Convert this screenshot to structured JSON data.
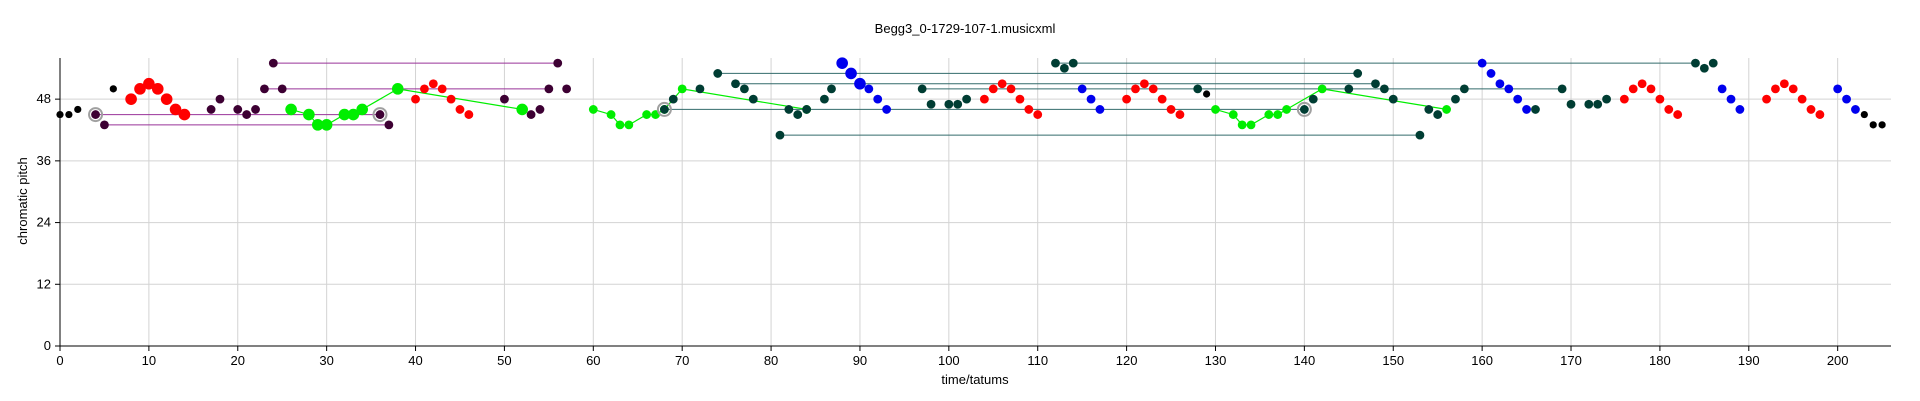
{
  "chart_data": {
    "type": "scatter",
    "title": "Begg3_0-1729-107-1.musicxml",
    "xlabel": "time/tatums",
    "ylabel": "chromatic pitch",
    "xlim": [
      0,
      206
    ],
    "ylim": [
      0,
      56
    ],
    "xticks": [
      0,
      10,
      20,
      30,
      40,
      50,
      60,
      70,
      80,
      90,
      100,
      110,
      120,
      130,
      140,
      150,
      160,
      170,
      180,
      190,
      200
    ],
    "yticks": [
      0,
      12,
      24,
      36,
      48
    ],
    "xtick_labels": [
      "0",
      "10",
      "20",
      "30",
      "40",
      "50",
      "60",
      "70",
      "80",
      "90",
      "100",
      "110",
      "120",
      "130",
      "140",
      "150",
      "160",
      "170",
      "180",
      "190",
      "200"
    ],
    "ytick_labels": [
      "0",
      "12",
      "24",
      "36",
      "48"
    ],
    "grid": true,
    "colors": {
      "black": "#000000",
      "red": "#ff0000",
      "purple": "#3d0033",
      "purple_line": "#993399",
      "green": "#00ee00",
      "teal": "#003d33",
      "teal_line": "#336b6b",
      "blue": "#0000ee"
    },
    "series": [
      {
        "color": "black",
        "points": [
          [
            0,
            45
          ],
          [
            1,
            45
          ],
          [
            2,
            46
          ],
          [
            6,
            50
          ],
          [
            129,
            49
          ],
          [
            203,
            45
          ],
          [
            204,
            43
          ],
          [
            205,
            43
          ]
        ]
      },
      {
        "color": "red",
        "big": [
          [
            8,
            48
          ],
          [
            9,
            50
          ],
          [
            10,
            51
          ],
          [
            11,
            50
          ],
          [
            12,
            48
          ],
          [
            13,
            46
          ],
          [
            14,
            45
          ]
        ],
        "points": [
          [
            40,
            48
          ],
          [
            41,
            50
          ],
          [
            42,
            51
          ],
          [
            43,
            50
          ],
          [
            44,
            48
          ],
          [
            45,
            46
          ],
          [
            46,
            45
          ],
          [
            104,
            48
          ],
          [
            105,
            50
          ],
          [
            106,
            51
          ],
          [
            107,
            50
          ],
          [
            108,
            48
          ],
          [
            109,
            46
          ],
          [
            110,
            45
          ],
          [
            120,
            48
          ],
          [
            121,
            50
          ],
          [
            122,
            51
          ],
          [
            123,
            50
          ],
          [
            124,
            48
          ],
          [
            125,
            46
          ],
          [
            126,
            45
          ],
          [
            176,
            48
          ],
          [
            177,
            50
          ],
          [
            178,
            51
          ],
          [
            179,
            50
          ],
          [
            180,
            48
          ],
          [
            181,
            46
          ],
          [
            182,
            45
          ],
          [
            192,
            48
          ],
          [
            193,
            50
          ],
          [
            194,
            51
          ],
          [
            195,
            50
          ],
          [
            196,
            48
          ],
          [
            197,
            46
          ],
          [
            198,
            45
          ]
        ]
      },
      {
        "color": "purple",
        "points": [
          [
            4,
            45
          ],
          [
            5,
            43
          ],
          [
            17,
            46
          ],
          [
            18,
            48
          ],
          [
            20,
            46
          ],
          [
            21,
            45
          ],
          [
            22,
            46
          ],
          [
            23,
            50
          ],
          [
            24,
            55
          ],
          [
            25,
            50
          ],
          [
            36,
            45
          ],
          [
            37,
            43
          ],
          [
            50,
            48
          ],
          [
            52,
            46
          ],
          [
            53,
            45
          ],
          [
            54,
            46
          ],
          [
            55,
            50
          ],
          [
            56,
            55
          ],
          [
            57,
            50
          ]
        ],
        "rings": [
          [
            4,
            45
          ],
          [
            36,
            45
          ]
        ],
        "lines": [
          [
            4,
            45,
            36,
            45
          ],
          [
            5,
            43,
            37,
            43
          ],
          [
            24,
            55,
            56,
            55
          ],
          [
            23,
            50,
            55,
            50
          ]
        ]
      },
      {
        "color": "green",
        "connected": true,
        "big": [
          [
            26,
            46
          ],
          [
            28,
            45
          ],
          [
            29,
            43
          ],
          [
            30,
            43
          ],
          [
            32,
            45
          ],
          [
            33,
            45
          ],
          [
            34,
            46
          ],
          [
            38,
            50
          ],
          [
            52,
            46
          ]
        ],
        "points": [
          [
            60,
            46
          ],
          [
            62,
            45
          ],
          [
            63,
            43
          ],
          [
            64,
            43
          ],
          [
            66,
            45
          ],
          [
            67,
            45
          ],
          [
            68,
            46
          ],
          [
            70,
            50
          ],
          [
            84,
            46
          ],
          [
            130,
            46
          ],
          [
            132,
            45
          ],
          [
            133,
            43
          ],
          [
            134,
            43
          ],
          [
            136,
            45
          ],
          [
            137,
            45
          ],
          [
            138,
            46
          ],
          [
            142,
            50
          ],
          [
            156,
            46
          ]
        ],
        "path": [
          [
            26,
            46
          ],
          [
            28,
            45
          ],
          [
            29,
            43
          ],
          [
            30,
            43
          ],
          [
            32,
            45
          ],
          [
            33,
            45
          ],
          [
            34,
            46
          ],
          [
            38,
            50
          ],
          [
            52,
            46
          ],
          null,
          [
            60,
            46
          ],
          [
            62,
            45
          ],
          [
            63,
            43
          ],
          [
            64,
            43
          ],
          [
            66,
            45
          ],
          [
            67,
            45
          ],
          [
            68,
            46
          ],
          [
            70,
            50
          ],
          [
            84,
            46
          ],
          null,
          [
            130,
            46
          ],
          [
            132,
            45
          ],
          [
            133,
            43
          ],
          [
            134,
            43
          ],
          [
            136,
            45
          ],
          [
            137,
            45
          ],
          [
            138,
            46
          ],
          [
            142,
            50
          ],
          [
            156,
            46
          ]
        ]
      },
      {
        "color": "teal",
        "points": [
          [
            68,
            46
          ],
          [
            69,
            48
          ],
          [
            72,
            50
          ],
          [
            74,
            53
          ],
          [
            76,
            51
          ],
          [
            77,
            50
          ],
          [
            78,
            48
          ],
          [
            81,
            41
          ],
          [
            82,
            46
          ],
          [
            83,
            45
          ],
          [
            84,
            46
          ],
          [
            86,
            48
          ],
          [
            86.8,
            50
          ],
          [
            97,
            50
          ],
          [
            98,
            47
          ],
          [
            100,
            47
          ],
          [
            101,
            47
          ],
          [
            102,
            48
          ],
          [
            112,
            55
          ],
          [
            113,
            54
          ],
          [
            114,
            55
          ],
          [
            128,
            50
          ],
          [
            140,
            46
          ],
          [
            141,
            48
          ],
          [
            145,
            50
          ],
          [
            146,
            53
          ],
          [
            148,
            51
          ],
          [
            149,
            50
          ],
          [
            150,
            48
          ],
          [
            153,
            41
          ],
          [
            154,
            46
          ],
          [
            155,
            45
          ],
          [
            157,
            48
          ],
          [
            158,
            50
          ],
          [
            166,
            46
          ],
          [
            169,
            50
          ],
          [
            170,
            47
          ],
          [
            172,
            47
          ],
          [
            173,
            47
          ],
          [
            174,
            48
          ],
          [
            184,
            55
          ],
          [
            185,
            54
          ],
          [
            186,
            55
          ]
        ],
        "rings": [
          [
            68,
            46
          ],
          [
            140,
            46
          ]
        ],
        "lines": [
          [
            68,
            46,
            140,
            46
          ],
          [
            74,
            53,
            146,
            53
          ],
          [
            81,
            41,
            153,
            41
          ],
          [
            112,
            55,
            184,
            55
          ],
          [
            97,
            50,
            169,
            50
          ],
          [
            76,
            51,
            148,
            51
          ]
        ]
      },
      {
        "color": "blue",
        "big": [
          [
            88,
            55
          ],
          [
            89,
            53
          ],
          [
            90,
            51
          ]
        ],
        "points": [
          [
            91,
            50
          ],
          [
            92,
            48
          ],
          [
            93,
            46
          ],
          [
            115,
            50
          ],
          [
            116,
            48
          ],
          [
            117,
            46
          ],
          [
            160,
            55
          ],
          [
            161,
            53
          ],
          [
            162,
            51
          ],
          [
            163,
            50
          ],
          [
            164,
            48
          ],
          [
            165,
            46
          ],
          [
            187,
            50
          ],
          [
            188,
            48
          ],
          [
            189,
            46
          ],
          [
            200,
            50
          ],
          [
            201,
            48
          ],
          [
            202,
            46
          ]
        ]
      }
    ]
  }
}
